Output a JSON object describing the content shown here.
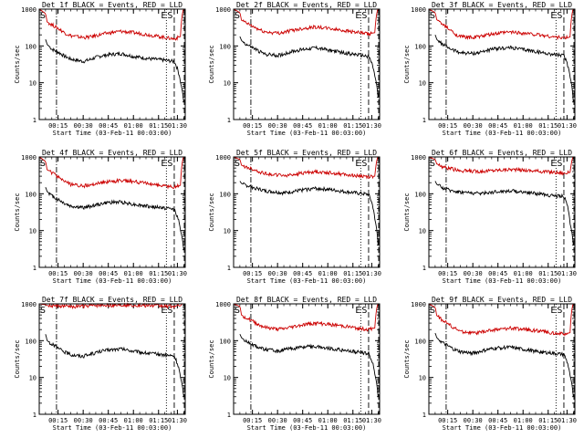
{
  "chart_data": [
    {
      "type": "line",
      "title": "Det 1f BLACK = Events, RED = LLD",
      "xlabel": "Start Time (03-Feb-11 00:03:00)",
      "ylabel": "Counts/sec",
      "xticks": [
        "00:15",
        "00:30",
        "00:45",
        "01:00",
        "01:15",
        "01:30"
      ],
      "yticks": [
        "1",
        "10",
        "100",
        "1000"
      ],
      "ylim": [
        1,
        1000
      ],
      "yscale": "log",
      "grid": false,
      "annotations": [
        "S",
        "E",
        "S"
      ],
      "series": [
        {
          "name": "Events",
          "color": "#000000",
          "x": [
            0.2,
            0.25,
            0.4,
            0.6,
            0.8,
            1.0,
            1.4,
            1.6,
            1.9,
            2.2,
            2.6,
            3.0,
            3.5,
            3.9,
            4.3,
            4.5,
            4.6
          ],
          "y": [
            150,
            110,
            82,
            68,
            53,
            44,
            38,
            42,
            52,
            58,
            62,
            52,
            45,
            42,
            38,
            10,
            3
          ]
        },
        {
          "name": "LLD",
          "color": "#cc0000",
          "x": [
            0.0,
            0.2,
            0.25,
            0.4,
            0.6,
            0.8,
            1.0,
            1.4,
            1.6,
            1.9,
            2.2,
            2.6,
            3.0,
            3.5,
            3.9,
            4.3,
            4.5,
            4.6
          ],
          "y": [
            1000,
            750,
            450,
            380,
            300,
            230,
            190,
            170,
            175,
            200,
            225,
            250,
            230,
            200,
            175,
            155,
            180,
            1100
          ]
        }
      ]
    },
    {
      "type": "line",
      "title": "Det 2f BLACK = Events, RED = LLD",
      "xlabel": "Start Time (03-Feb-11 00:03:00)",
      "ylabel": "Counts/sec",
      "xticks": [
        "00:15",
        "00:30",
        "00:45",
        "01:00",
        "01:15",
        "01:30"
      ],
      "yticks": [
        "1",
        "10",
        "100",
        "1000"
      ],
      "ylim": [
        1,
        1000
      ],
      "yscale": "log",
      "grid": false,
      "annotations": [
        "S",
        "E",
        "S"
      ],
      "series": [
        {
          "name": "Events",
          "color": "#000000",
          "x": [
            0.2,
            0.25,
            0.4,
            0.6,
            0.8,
            1.0,
            1.4,
            1.6,
            1.9,
            2.2,
            2.6,
            3.0,
            3.5,
            3.9,
            4.3,
            4.5,
            4.6
          ],
          "y": [
            180,
            140,
            110,
            90,
            72,
            60,
            55,
            60,
            72,
            80,
            90,
            78,
            65,
            58,
            52,
            15,
            4
          ]
        },
        {
          "name": "LLD",
          "color": "#cc0000",
          "x": [
            0.0,
            0.2,
            0.25,
            0.4,
            0.6,
            0.8,
            1.0,
            1.4,
            1.6,
            1.9,
            2.2,
            2.6,
            3.0,
            3.5,
            3.9,
            4.3,
            4.5,
            4.6
          ],
          "y": [
            1000,
            800,
            500,
            420,
            340,
            280,
            240,
            225,
            235,
            270,
            300,
            330,
            300,
            265,
            235,
            210,
            230,
            1100
          ]
        }
      ]
    },
    {
      "type": "line",
      "title": "Det 3f BLACK = Events, RED = LLD",
      "xlabel": "Start Time (03-Feb-11 00:03:00)",
      "ylabel": "Counts/sec",
      "xticks": [
        "00:15",
        "00:30",
        "00:45",
        "01:00",
        "01:15",
        "01:30"
      ],
      "yticks": [
        "1",
        "10",
        "100",
        "1000"
      ],
      "ylim": [
        1,
        1000
      ],
      "yscale": "log",
      "grid": false,
      "annotations": [
        "S",
        "E",
        "S"
      ],
      "series": [
        {
          "name": "Events",
          "color": "#000000",
          "x": [
            0.2,
            0.25,
            0.4,
            0.6,
            0.8,
            1.0,
            1.4,
            1.6,
            1.9,
            2.2,
            2.6,
            3.0,
            3.5,
            3.9,
            4.3,
            4.5,
            4.6
          ],
          "y": [
            200,
            150,
            115,
            92,
            76,
            66,
            62,
            66,
            78,
            85,
            90,
            80,
            68,
            60,
            54,
            14,
            3
          ]
        },
        {
          "name": "LLD",
          "color": "#cc0000",
          "x": [
            0.0,
            0.2,
            0.25,
            0.4,
            0.6,
            0.8,
            1.0,
            1.4,
            1.6,
            1.9,
            2.2,
            2.6,
            3.0,
            3.5,
            3.9,
            4.3,
            4.5,
            4.6
          ],
          "y": [
            1000,
            800,
            520,
            400,
            300,
            220,
            180,
            170,
            180,
            200,
            220,
            240,
            225,
            200,
            180,
            165,
            175,
            1100
          ]
        }
      ]
    },
    {
      "type": "line",
      "title": "Det 4f BLACK = Events, RED = LLD",
      "xlabel": "Start Time (03-Feb-11 00:03:00)",
      "ylabel": "Counts/sec",
      "xticks": [
        "00:15",
        "00:30",
        "00:45",
        "01:00",
        "01:15",
        "01:30"
      ],
      "yticks": [
        "1",
        "10",
        "100",
        "1000"
      ],
      "ylim": [
        1,
        1000
      ],
      "yscale": "log",
      "grid": false,
      "annotations": [
        "S",
        "E",
        "S"
      ],
      "series": [
        {
          "name": "Events",
          "color": "#000000",
          "x": [
            0.2,
            0.25,
            0.4,
            0.6,
            0.8,
            1.0,
            1.4,
            1.6,
            1.9,
            2.2,
            2.6,
            3.0,
            3.5,
            3.9,
            4.3,
            4.5,
            4.6
          ],
          "y": [
            150,
            115,
            88,
            70,
            55,
            46,
            42,
            45,
            52,
            58,
            60,
            52,
            45,
            42,
            38,
            10,
            3
          ]
        },
        {
          "name": "LLD",
          "color": "#cc0000",
          "x": [
            0.0,
            0.2,
            0.25,
            0.4,
            0.6,
            0.8,
            1.0,
            1.4,
            1.6,
            1.9,
            2.2,
            2.6,
            3.0,
            3.5,
            3.9,
            4.3,
            4.5,
            4.6
          ],
          "y": [
            1000,
            750,
            450,
            370,
            290,
            220,
            180,
            165,
            170,
            195,
            215,
            230,
            215,
            190,
            165,
            150,
            170,
            1100
          ]
        }
      ]
    },
    {
      "type": "line",
      "title": "Det 5f BLACK = Events, RED = LLD",
      "xlabel": "Start Time (03-Feb-11 00:03:00)",
      "ylabel": "Counts/sec",
      "xticks": [
        "00:15",
        "00:30",
        "00:45",
        "01:00",
        "01:15",
        "01:30"
      ],
      "yticks": [
        "1",
        "10",
        "100",
        "1000"
      ],
      "ylim": [
        1,
        1000
      ],
      "yscale": "log",
      "grid": false,
      "annotations": [
        "S",
        "E",
        "S"
      ],
      "series": [
        {
          "name": "Events",
          "color": "#000000",
          "x": [
            0.2,
            0.25,
            0.4,
            0.6,
            0.8,
            1.0,
            1.4,
            1.6,
            1.9,
            2.2,
            2.6,
            3.0,
            3.5,
            3.9,
            4.3,
            4.5,
            4.6
          ],
          "y": [
            220,
            190,
            170,
            150,
            135,
            120,
            110,
            105,
            115,
            128,
            140,
            132,
            115,
            105,
            95,
            20,
            4
          ]
        },
        {
          "name": "LLD",
          "color": "#cc0000",
          "x": [
            0.0,
            0.2,
            0.25,
            0.4,
            0.6,
            0.8,
            1.0,
            1.4,
            1.6,
            1.9,
            2.2,
            2.6,
            3.0,
            3.5,
            3.9,
            4.3,
            4.5,
            4.6
          ],
          "y": [
            1000,
            850,
            600,
            520,
            460,
            400,
            360,
            320,
            310,
            330,
            370,
            400,
            380,
            340,
            310,
            290,
            300,
            1100
          ]
        }
      ]
    },
    {
      "type": "line",
      "title": "Det 6f BLACK = Events, RED = LLD",
      "xlabel": "Start Time (03-Feb-11 00:03:00)",
      "ylabel": "Counts/sec",
      "xticks": [
        "00:15",
        "00:30",
        "00:45",
        "01:00",
        "01:15",
        "01:30"
      ],
      "yticks": [
        "1",
        "10",
        "100",
        "1000"
      ],
      "ylim": [
        1,
        1000
      ],
      "yscale": "log",
      "grid": false,
      "annotations": [
        "S",
        "E",
        "S"
      ],
      "series": [
        {
          "name": "Events",
          "color": "#000000",
          "x": [
            0.2,
            0.25,
            0.4,
            0.6,
            0.8,
            1.0,
            1.4,
            1.6,
            1.9,
            2.2,
            2.6,
            3.0,
            3.5,
            3.9,
            4.3,
            4.5,
            4.6
          ],
          "y": [
            220,
            180,
            150,
            130,
            120,
            112,
            105,
            102,
            108,
            115,
            120,
            112,
            100,
            90,
            85,
            15,
            4
          ]
        },
        {
          "name": "LLD",
          "color": "#cc0000",
          "x": [
            0.0,
            0.2,
            0.25,
            0.4,
            0.6,
            0.8,
            1.0,
            1.4,
            1.6,
            1.9,
            2.2,
            2.6,
            3.0,
            3.5,
            3.9,
            4.3,
            4.5,
            4.6
          ],
          "y": [
            1000,
            850,
            650,
            560,
            500,
            460,
            430,
            410,
            410,
            420,
            440,
            460,
            440,
            410,
            390,
            360,
            380,
            1100
          ]
        }
      ]
    },
    {
      "type": "line",
      "title": "Det 7f BLACK = Events, RED = LLD",
      "xlabel": "Start Time (03-Feb-11 00:03:00)",
      "ylabel": "Counts/sec",
      "xticks": [
        "00:15",
        "00:30",
        "00:45",
        "01:00",
        "01:15",
        "01:30"
      ],
      "yticks": [
        "1",
        "10",
        "100",
        "1000"
      ],
      "ylim": [
        1,
        1000
      ],
      "yscale": "log",
      "grid": false,
      "annotations": [
        "S",
        "E",
        "S"
      ],
      "series": [
        {
          "name": "Events",
          "color": "#000000",
          "x": [
            0.2,
            0.25,
            0.4,
            0.6,
            0.8,
            1.0,
            1.4,
            1.6,
            1.9,
            2.2,
            2.6,
            3.0,
            3.5,
            3.9,
            4.3,
            4.5,
            4.6
          ],
          "y": [
            150,
            100,
            80,
            62,
            50,
            42,
            38,
            42,
            50,
            56,
            60,
            52,
            45,
            42,
            38,
            10,
            3
          ]
        },
        {
          "name": "LLD",
          "color": "#cc0000",
          "x": [
            0.0,
            0.2,
            0.25,
            0.4,
            0.6,
            0.8,
            1.0,
            1.4,
            1.6,
            1.9,
            2.2,
            2.6,
            3.0,
            3.5,
            3.9,
            4.3,
            4.5,
            4.6
          ],
          "y": [
            1000,
            950,
            900,
            880,
            860,
            850,
            850,
            860,
            880,
            900,
            920,
            940,
            920,
            900,
            880,
            860,
            880,
            1100
          ]
        }
      ]
    },
    {
      "type": "line",
      "title": "Det 8f BLACK = Events, RED = LLD",
      "xlabel": "Start Time (03-Feb-11 00:03:00)",
      "ylabel": "Counts/sec",
      "xticks": [
        "00:15",
        "00:30",
        "00:45",
        "01:00",
        "01:15",
        "01:30"
      ],
      "yticks": [
        "1",
        "10",
        "100",
        "1000"
      ],
      "ylim": [
        1,
        1000
      ],
      "yscale": "log",
      "grid": false,
      "annotations": [
        "S",
        "E",
        "S"
      ],
      "series": [
        {
          "name": "Events",
          "color": "#000000",
          "x": [
            0.2,
            0.25,
            0.4,
            0.6,
            0.8,
            1.0,
            1.4,
            1.6,
            1.9,
            2.2,
            2.6,
            3.0,
            3.5,
            3.9,
            4.3,
            4.5,
            4.6
          ],
          "y": [
            150,
            120,
            95,
            80,
            66,
            58,
            52,
            56,
            62,
            68,
            70,
            62,
            55,
            50,
            45,
            12,
            3
          ]
        },
        {
          "name": "LLD",
          "color": "#cc0000",
          "x": [
            0.0,
            0.2,
            0.25,
            0.4,
            0.6,
            0.8,
            1.0,
            1.4,
            1.6,
            1.9,
            2.2,
            2.6,
            3.0,
            3.5,
            3.9,
            4.3,
            4.5,
            4.6
          ],
          "y": [
            1000,
            850,
            500,
            420,
            340,
            270,
            230,
            205,
            210,
            240,
            270,
            300,
            280,
            250,
            220,
            200,
            220,
            1100
          ]
        }
      ]
    },
    {
      "type": "line",
      "title": "Det 9f BLACK = Events, RED = LLD",
      "xlabel": "Start Time (03-Feb-11 00:03:00)",
      "ylabel": "Counts/sec",
      "xticks": [
        "00:15",
        "00:30",
        "00:45",
        "01:00",
        "01:15",
        "01:30"
      ],
      "yticks": [
        "1",
        "10",
        "100",
        "1000"
      ],
      "ylim": [
        1,
        1000
      ],
      "yscale": "log",
      "grid": false,
      "annotations": [
        "S",
        "E",
        "S"
      ],
      "series": [
        {
          "name": "Events",
          "color": "#000000",
          "x": [
            0.2,
            0.25,
            0.4,
            0.6,
            0.8,
            1.0,
            1.4,
            1.6,
            1.9,
            2.2,
            2.6,
            3.0,
            3.5,
            3.9,
            4.3,
            4.5,
            4.6
          ],
          "y": [
            160,
            120,
            92,
            72,
            58,
            50,
            46,
            50,
            58,
            64,
            66,
            58,
            50,
            46,
            42,
            11,
            3
          ]
        },
        {
          "name": "LLD",
          "color": "#cc0000",
          "x": [
            0.0,
            0.2,
            0.25,
            0.4,
            0.6,
            0.8,
            1.0,
            1.4,
            1.6,
            1.9,
            2.2,
            2.6,
            3.0,
            3.5,
            3.9,
            4.3,
            4.5,
            4.6
          ],
          "y": [
            1000,
            800,
            480,
            380,
            290,
            220,
            180,
            160,
            165,
            185,
            205,
            220,
            205,
            185,
            165,
            150,
            165,
            1100
          ]
        }
      ]
    }
  ]
}
